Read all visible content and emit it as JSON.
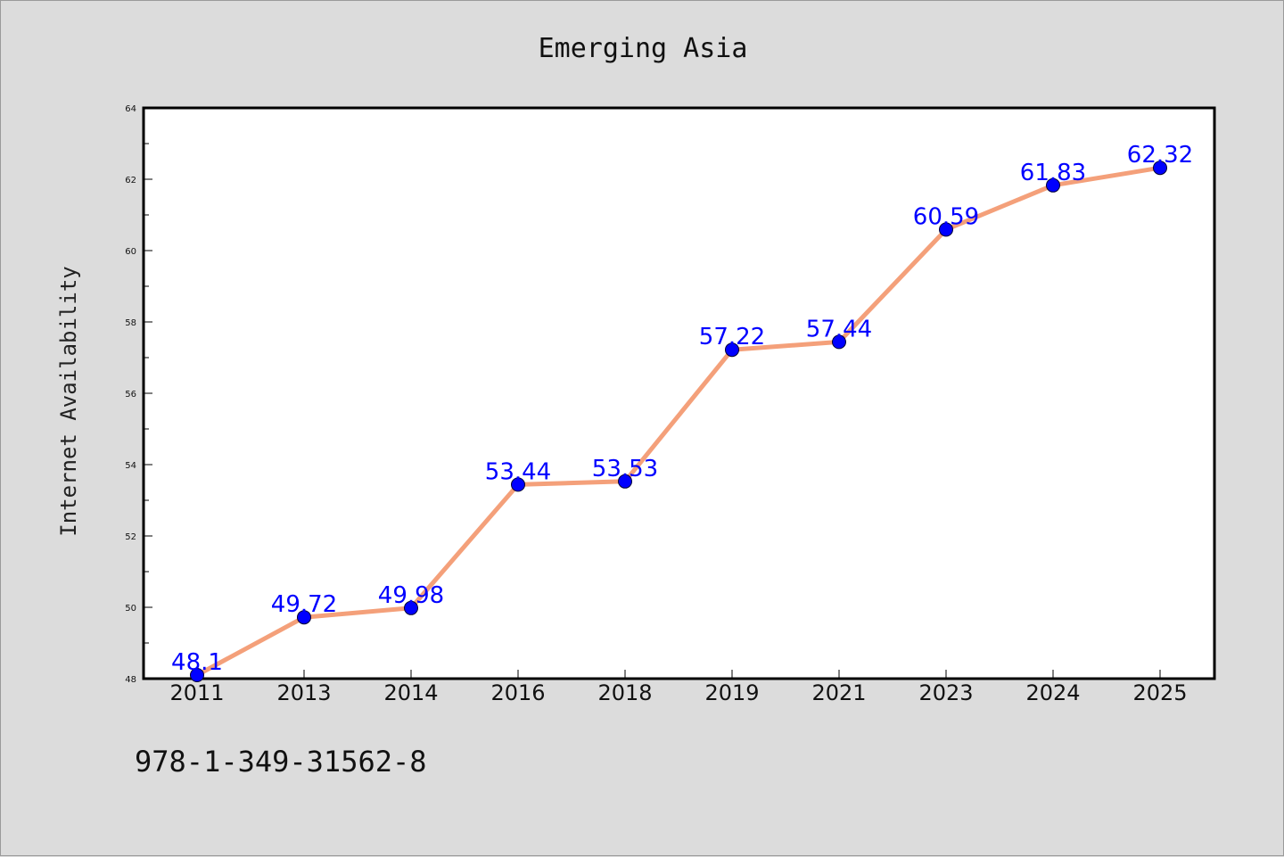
{
  "chart_data": {
    "type": "line",
    "title": "Emerging Asia",
    "xlabel": "",
    "ylabel": "Internet Availability",
    "categories": [
      "2011",
      "2013",
      "2014",
      "2016",
      "2018",
      "2019",
      "2021",
      "2023",
      "2024",
      "2025"
    ],
    "series": [
      {
        "values": [
          48.1,
          49.72,
          49.98,
          53.44,
          53.53,
          57.22,
          57.44,
          60.59,
          61.83,
          62.32
        ],
        "labels": [
          "48.1",
          "49.72",
          "49.98",
          "53.44",
          "53.53",
          "57.22",
          "57.44",
          "60.59",
          "61.83",
          "62.32"
        ],
        "line_color": "#f4a07a",
        "marker_color": "#0000ff"
      }
    ],
    "ylim": [
      48,
      64
    ],
    "yticks": [
      "48",
      "50",
      "52",
      "54",
      "56",
      "58",
      "60",
      "62",
      "64"
    ],
    "grid": false,
    "data_labels": true
  },
  "footnote": "978-1-349-31562-8"
}
